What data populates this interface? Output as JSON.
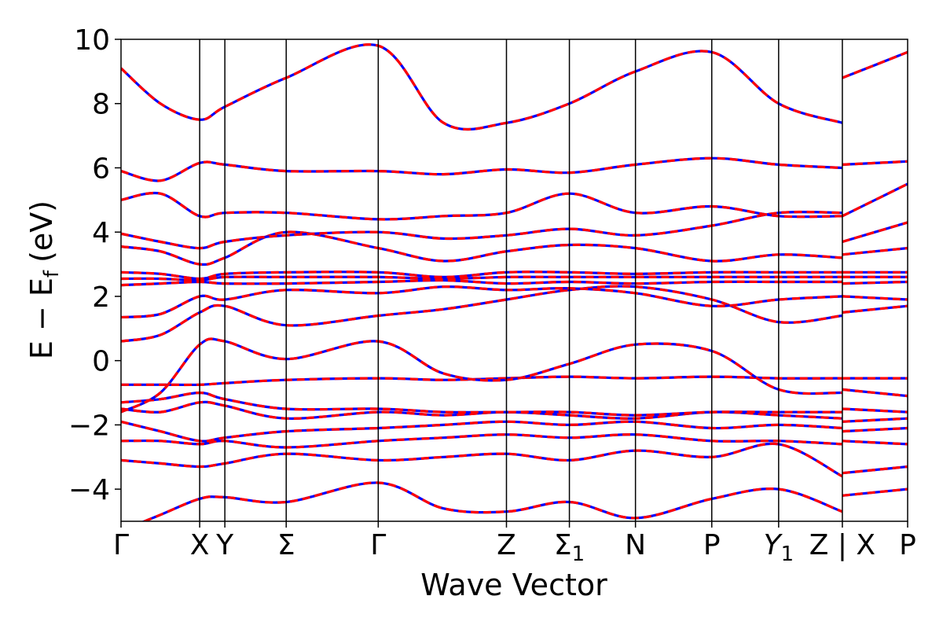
{
  "chart_data": {
    "type": "line",
    "xlabel": "Wave Vector",
    "ylabel": "E − E",
    "ylabel_subscript": "f",
    "ylabel_unit": "(eV)",
    "ylim": [
      -5,
      10
    ],
    "xlim": [
      0,
      1
    ],
    "y_ticks": [
      -4,
      -2,
      0,
      2,
      4,
      6,
      8,
      10
    ],
    "grid": false,
    "k_points": [
      {
        "label": "Γ",
        "x": 0.0
      },
      {
        "label": "X",
        "x": 0.1
      },
      {
        "label": "Y",
        "x": 0.132
      },
      {
        "label": "Σ",
        "x": 0.21
      },
      {
        "label": "Γ",
        "x": 0.327
      },
      {
        "label": "Z",
        "x": 0.49
      },
      {
        "label": "Σ",
        "sub": "1",
        "x": 0.57
      },
      {
        "label": "N",
        "x": 0.654
      },
      {
        "label": "P",
        "x": 0.751
      },
      {
        "label": "Y",
        "sub": "1",
        "italic": true,
        "x": 0.836
      },
      {
        "label": "Z | X",
        "x": 0.917
      },
      {
        "label": "P",
        "x": 1.0
      }
    ],
    "segment_break_x": 0.917,
    "line_styles": [
      {
        "color": "#0000ff",
        "style": "solid"
      },
      {
        "color": "#ff0000",
        "style": "dashed"
      }
    ],
    "series": [
      {
        "x": [
          0,
          0.05,
          0.1,
          0.132,
          0.21,
          0.327,
          0.41,
          0.49,
          0.57,
          0.654,
          0.751,
          0.836,
          0.917,
          0.917,
          1.0
        ],
        "values": [
          -3.1,
          -3.2,
          -3.3,
          -3.2,
          -2.9,
          -3.1,
          -3.0,
          -2.9,
          -3.1,
          -2.8,
          -3.0,
          -2.6,
          -3.6,
          -3.5,
          -3.3
        ]
      },
      {
        "x": [
          0,
          0.05,
          0.1,
          0.132,
          0.21,
          0.327,
          0.41,
          0.49,
          0.57,
          0.654,
          0.751,
          0.836,
          0.917,
          0.917,
          1.0
        ],
        "values": [
          -2.5,
          -2.5,
          -2.6,
          -2.5,
          -2.7,
          -2.5,
          -2.4,
          -2.3,
          -2.4,
          -2.3,
          -2.5,
          -2.5,
          -2.6,
          -2.5,
          -2.6
        ]
      },
      {
        "x": [
          0,
          0.05,
          0.1,
          0.132,
          0.21,
          0.327,
          0.41,
          0.49,
          0.57,
          0.654,
          0.751,
          0.836,
          0.917,
          0.917,
          1.0
        ],
        "values": [
          -1.9,
          -2.2,
          -2.5,
          -2.4,
          -2.2,
          -2.1,
          -2.0,
          -1.9,
          -2.0,
          -1.9,
          -2.1,
          -2.0,
          -2.1,
          -2.2,
          -2.1
        ]
      },
      {
        "x": [
          0,
          0.05,
          0.1,
          0.132,
          0.21,
          0.327,
          0.41,
          0.49,
          0.57,
          0.654,
          0.751,
          0.836,
          0.917,
          0.917,
          1.0
        ],
        "values": [
          -1.5,
          -1.6,
          -1.3,
          -1.4,
          -1.8,
          -1.6,
          -1.7,
          -1.6,
          -1.7,
          -1.8,
          -1.6,
          -1.7,
          -1.8,
          -1.9,
          -1.8
        ]
      },
      {
        "x": [
          0,
          0.05,
          0.1,
          0.132,
          0.21,
          0.327,
          0.41,
          0.49,
          0.57,
          0.654,
          0.751,
          0.836,
          0.917,
          0.917,
          1.0
        ],
        "values": [
          -1.3,
          -1.2,
          -1.0,
          -1.2,
          -1.5,
          -1.5,
          -1.6,
          -1.6,
          -1.6,
          -1.7,
          -1.6,
          -1.6,
          -1.6,
          -1.5,
          -1.6
        ]
      },
      {
        "x": [
          0,
          0.05,
          0.1,
          0.132,
          0.21,
          0.327,
          0.41,
          0.49,
          0.57,
          0.654,
          0.751,
          0.836,
          0.917,
          0.917,
          1.0
        ],
        "values": [
          -0.75,
          -0.75,
          -0.75,
          -0.7,
          -0.6,
          -0.55,
          -0.6,
          -0.55,
          -0.5,
          -0.55,
          -0.5,
          -0.55,
          -0.55,
          -0.55,
          -0.55
        ]
      },
      {
        "x": [
          0,
          0.05,
          0.1,
          0.132,
          0.21,
          0.327,
          0.41,
          0.49,
          0.57,
          0.654,
          0.751,
          0.836,
          0.917,
          0.917,
          1.0
        ],
        "values": [
          -1.6,
          -1.0,
          0.5,
          0.6,
          0.05,
          0.6,
          -0.4,
          -0.6,
          -0.1,
          0.5,
          0.3,
          -0.9,
          -1.0,
          -0.9,
          -1.1
        ]
      },
      {
        "x": [
          0,
          0.05,
          0.1,
          0.132,
          0.21,
          0.327,
          0.41,
          0.49,
          0.57,
          0.654,
          0.751,
          0.836,
          0.917,
          0.917,
          1.0
        ],
        "values": [
          0.6,
          0.8,
          1.5,
          1.7,
          1.1,
          1.4,
          1.6,
          1.9,
          2.2,
          2.3,
          1.9,
          1.2,
          1.4,
          1.5,
          1.7
        ]
      },
      {
        "x": [
          0,
          0.05,
          0.1,
          0.132,
          0.21,
          0.327,
          0.41,
          0.49,
          0.57,
          0.654,
          0.751,
          0.836,
          0.917,
          0.917,
          1.0
        ],
        "values": [
          1.35,
          1.45,
          2.0,
          1.9,
          2.2,
          2.1,
          2.3,
          2.2,
          2.25,
          2.1,
          1.7,
          1.9,
          2.0,
          2.0,
          1.9
        ]
      },
      {
        "x": [
          0,
          0.05,
          0.1,
          0.132,
          0.21,
          0.327,
          0.41,
          0.49,
          0.57,
          0.654,
          0.751,
          0.836,
          0.917,
          0.917,
          1.0
        ],
        "values": [
          2.35,
          2.4,
          2.45,
          2.4,
          2.4,
          2.45,
          2.5,
          2.4,
          2.45,
          2.4,
          2.45,
          2.45,
          2.45,
          2.4,
          2.45
        ]
      },
      {
        "x": [
          0,
          0.05,
          0.1,
          0.132,
          0.21,
          0.327,
          0.41,
          0.49,
          0.57,
          0.654,
          0.751,
          0.836,
          0.917,
          0.917,
          1.0
        ],
        "values": [
          2.55,
          2.55,
          2.5,
          2.6,
          2.6,
          2.6,
          2.55,
          2.6,
          2.6,
          2.6,
          2.6,
          2.6,
          2.6,
          2.6,
          2.6
        ]
      },
      {
        "x": [
          0,
          0.05,
          0.1,
          0.132,
          0.21,
          0.327,
          0.41,
          0.49,
          0.57,
          0.654,
          0.751,
          0.836,
          0.917,
          0.917,
          1.0
        ],
        "values": [
          2.75,
          2.7,
          2.55,
          2.7,
          2.75,
          2.75,
          2.6,
          2.75,
          2.75,
          2.7,
          2.75,
          2.75,
          2.75,
          2.75,
          2.75
        ]
      },
      {
        "x": [
          0,
          0.05,
          0.1,
          0.132,
          0.21,
          0.327,
          0.41,
          0.49,
          0.57,
          0.654,
          0.751,
          0.836,
          0.917,
          0.917,
          1.0
        ],
        "values": [
          3.55,
          3.4,
          3.0,
          3.2,
          4.0,
          3.5,
          3.1,
          3.4,
          3.6,
          3.5,
          3.1,
          3.3,
          3.2,
          3.3,
          3.5
        ]
      },
      {
        "x": [
          0,
          0.05,
          0.1,
          0.132,
          0.21,
          0.327,
          0.41,
          0.49,
          0.57,
          0.654,
          0.751,
          0.836,
          0.917,
          0.917,
          1.0
        ],
        "values": [
          3.95,
          3.7,
          3.5,
          3.7,
          3.9,
          4.0,
          3.8,
          3.9,
          4.1,
          3.9,
          4.2,
          4.6,
          4.6,
          3.7,
          4.3
        ]
      },
      {
        "x": [
          0,
          0.05,
          0.1,
          0.132,
          0.21,
          0.327,
          0.41,
          0.49,
          0.57,
          0.654,
          0.751,
          0.836,
          0.917,
          0.917,
          1.0
        ],
        "values": [
          5.0,
          5.2,
          4.5,
          4.6,
          4.6,
          4.4,
          4.5,
          4.6,
          5.2,
          4.6,
          4.8,
          4.5,
          4.5,
          4.5,
          5.5
        ]
      },
      {
        "x": [
          0,
          0.05,
          0.1,
          0.132,
          0.21,
          0.327,
          0.41,
          0.49,
          0.57,
          0.654,
          0.751,
          0.836,
          0.917,
          0.917,
          1.0
        ],
        "values": [
          5.9,
          5.6,
          6.15,
          6.1,
          5.9,
          5.9,
          5.8,
          5.95,
          5.85,
          6.1,
          6.3,
          6.1,
          6.0,
          6.1,
          6.2
        ]
      },
      {
        "x": [
          0,
          0.05,
          0.1,
          0.132,
          0.21,
          0.327,
          0.41,
          0.49,
          0.57,
          0.654,
          0.751,
          0.836,
          0.917,
          0.917,
          1.0
        ],
        "values": [
          9.1,
          8.0,
          7.5,
          7.9,
          8.8,
          9.8,
          7.4,
          7.4,
          8.0,
          9.0,
          9.6,
          8.0,
          7.4,
          8.8,
          9.6
        ]
      },
      {
        "x": [
          0,
          0.05,
          0.1,
          0.132,
          0.21,
          0.327,
          0.41,
          0.49,
          0.57,
          0.654,
          0.751,
          0.836,
          0.917,
          0.917,
          1.0
        ],
        "values": [
          -5.3,
          -4.8,
          -4.3,
          -4.25,
          -4.4,
          -3.8,
          -4.6,
          -4.7,
          -4.4,
          -4.9,
          -4.3,
          -4.0,
          -4.7,
          -4.2,
          -4.0
        ]
      }
    ]
  }
}
